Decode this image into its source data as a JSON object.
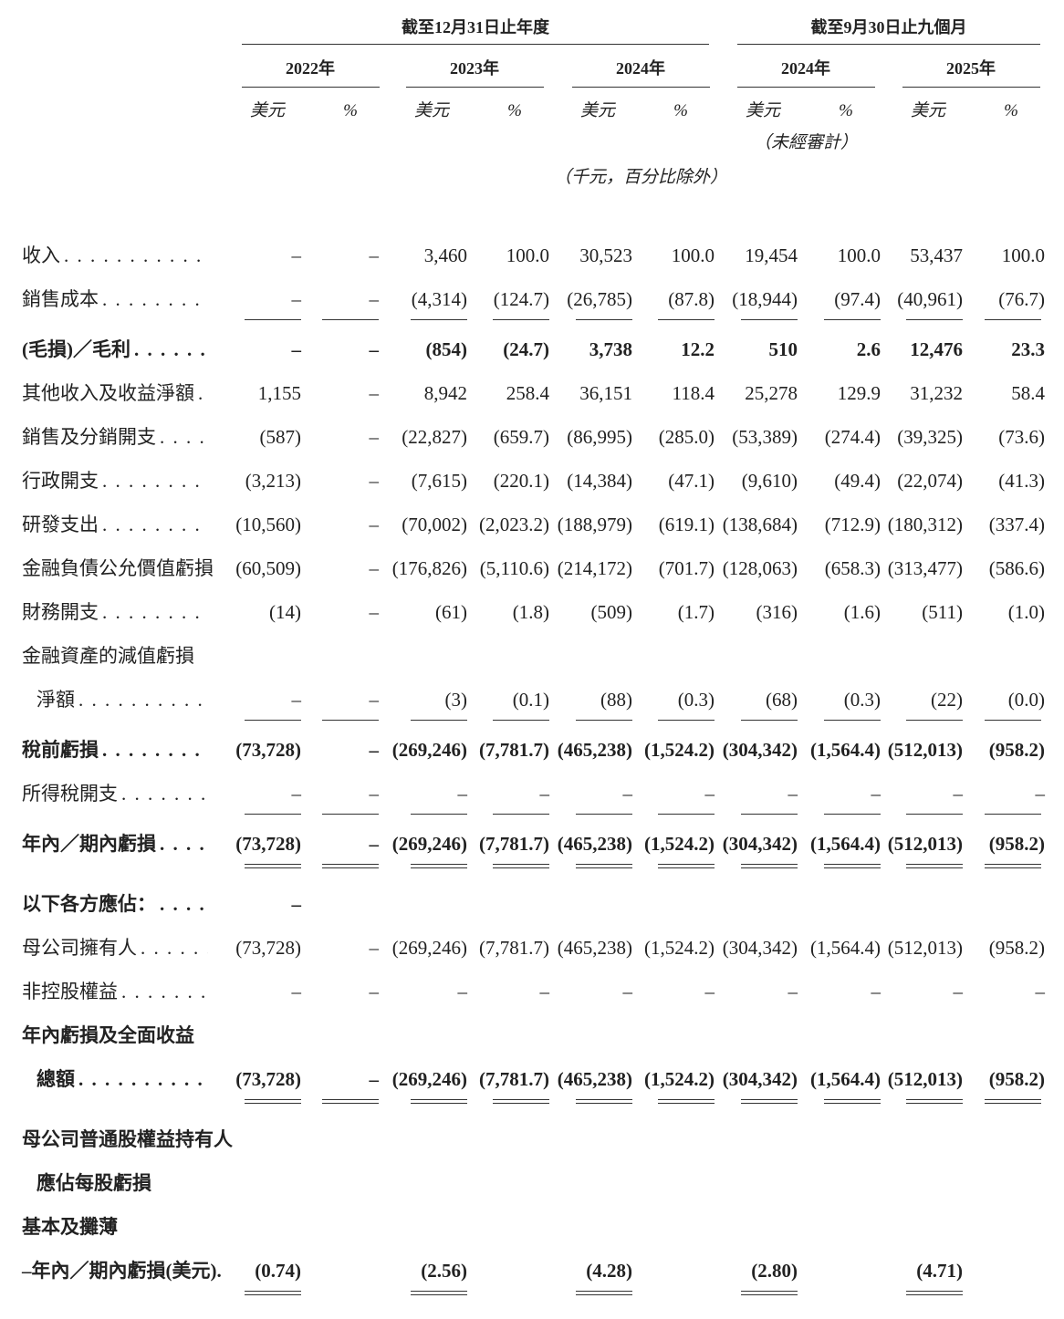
{
  "header": {
    "group_annual": "截至12月31日止年度",
    "group_interim": "截至9月30日止九個月",
    "years": [
      "2022年",
      "2023年",
      "2024年",
      "2024年",
      "2025年"
    ],
    "units": [
      "美元",
      "%",
      "美元",
      "%",
      "美元",
      "%",
      "美元",
      "%",
      "美元",
      "%"
    ],
    "unaudited": "（未經審計）",
    "unit_note": "（千元，百分比除外）"
  },
  "table": {
    "rows": [
      {
        "label": "收入",
        "leader": true,
        "values": [
          "–",
          "–",
          "3,460",
          "100.0",
          "30,523",
          "100.0",
          "19,454",
          "100.0",
          "53,437",
          "100.0"
        ]
      },
      {
        "label": "銷售成本",
        "leader": true,
        "rule": "single",
        "values": [
          "–",
          "–",
          "(4,314)",
          "(124.7)",
          "(26,785)",
          "(87.8)",
          "(18,944)",
          "(97.4)",
          "(40,961)",
          "(76.7)"
        ]
      },
      {
        "label": "(毛損)／毛利",
        "leader": true,
        "bold": true,
        "values": [
          "–",
          "–",
          "(854)",
          "(24.7)",
          "3,738",
          "12.2",
          "510",
          "2.6",
          "12,476",
          "23.3"
        ]
      },
      {
        "label": "其他收入及收益淨額",
        "leader": true,
        "values": [
          "1,155",
          "–",
          "8,942",
          "258.4",
          "36,151",
          "118.4",
          "25,278",
          "129.9",
          "31,232",
          "58.4"
        ]
      },
      {
        "label": "銷售及分銷開支",
        "leader": true,
        "values": [
          "(587)",
          "–",
          "(22,827)",
          "(659.7)",
          "(86,995)",
          "(285.0)",
          "(53,389)",
          "(274.4)",
          "(39,325)",
          "(73.6)"
        ]
      },
      {
        "label": "行政開支",
        "leader": true,
        "values": [
          "(3,213)",
          "–",
          "(7,615)",
          "(220.1)",
          "(14,384)",
          "(47.1)",
          "(9,610)",
          "(49.4)",
          "(22,074)",
          "(41.3)"
        ]
      },
      {
        "label": "研發支出",
        "leader": true,
        "values": [
          "(10,560)",
          "–",
          "(70,002)",
          "(2,023.2)",
          "(188,979)",
          "(619.1)",
          "(138,684)",
          "(712.9)",
          "(180,312)",
          "(337.4)"
        ]
      },
      {
        "label": "金融負債公允價值虧損",
        "leader": true,
        "values": [
          "(60,509)",
          "–",
          "(176,826)",
          "(5,110.6)",
          "(214,172)",
          "(701.7)",
          "(128,063)",
          "(658.3)",
          "(313,477)",
          "(586.6)"
        ]
      },
      {
        "label": "財務開支",
        "leader": true,
        "values": [
          "(14)",
          "–",
          "(61)",
          "(1.8)",
          "(509)",
          "(1.7)",
          "(316)",
          "(1.6)",
          "(511)",
          "(1.0)"
        ]
      },
      {
        "label": "金融資產的減值虧損"
      },
      {
        "label": "淨額",
        "leader": true,
        "indent": true,
        "rule": "single",
        "values": [
          "–",
          "–",
          "(3)",
          "(0.1)",
          "(88)",
          "(0.3)",
          "(68)",
          "(0.3)",
          "(22)",
          "(0.0)"
        ]
      },
      {
        "label": "稅前虧損",
        "leader": true,
        "bold": true,
        "values": [
          "(73,728)",
          "–",
          "(269,246)",
          "(7,781.7)",
          "(465,238)",
          "(1,524.2)",
          "(304,342)",
          "(1,564.4)",
          "(512,013)",
          "(958.2)"
        ]
      },
      {
        "label": "所得稅開支",
        "leader": true,
        "rule": "single",
        "values": [
          "–",
          "–",
          "–",
          "–",
          "–",
          "–",
          "–",
          "–",
          "–",
          "–"
        ]
      },
      {
        "label": "年內／期內虧損",
        "leader": true,
        "bold": true,
        "rule": "double",
        "values": [
          "(73,728)",
          "–",
          "(269,246)",
          "(7,781.7)",
          "(465,238)",
          "(1,524.2)",
          "(304,342)",
          "(1,564.4)",
          "(512,013)",
          "(958.2)"
        ]
      },
      {
        "label": "以下各方應佔：",
        "leader": true,
        "bold": true,
        "values": [
          "–",
          null,
          null,
          null,
          null,
          null,
          null,
          null,
          null,
          null
        ]
      },
      {
        "label": "母公司擁有人",
        "leader": true,
        "values": [
          "(73,728)",
          "–",
          "(269,246)",
          "(7,781.7)",
          "(465,238)",
          "(1,524.2)",
          "(304,342)",
          "(1,564.4)",
          "(512,013)",
          "(958.2)"
        ]
      },
      {
        "label": "非控股權益",
        "leader": true,
        "values": [
          "–",
          "–",
          "–",
          "–",
          "–",
          "–",
          "–",
          "–",
          "–",
          "–"
        ]
      },
      {
        "label": "年內虧損及全面收益",
        "bold": true
      },
      {
        "label": "總額",
        "leader": true,
        "bold": true,
        "indent": true,
        "rule": "double",
        "values": [
          "(73,728)",
          "–",
          "(269,246)",
          "(7,781.7)",
          "(465,238)",
          "(1,524.2)",
          "(304,342)",
          "(1,564.4)",
          "(512,013)",
          "(958.2)"
        ]
      },
      {
        "label": "母公司普通股權益持有人",
        "bold": true
      },
      {
        "label": "應佔每股虧損",
        "bold": true,
        "indent": true
      },
      {
        "label": "基本及攤薄",
        "bold": true
      },
      {
        "label": "–年內／期內虧損(美元).",
        "bold": true,
        "rule": "double",
        "values": [
          "(0.74)",
          null,
          "(2.56)",
          null,
          "(4.28)",
          null,
          "(2.80)",
          null,
          "(4.71)",
          null
        ]
      }
    ]
  }
}
